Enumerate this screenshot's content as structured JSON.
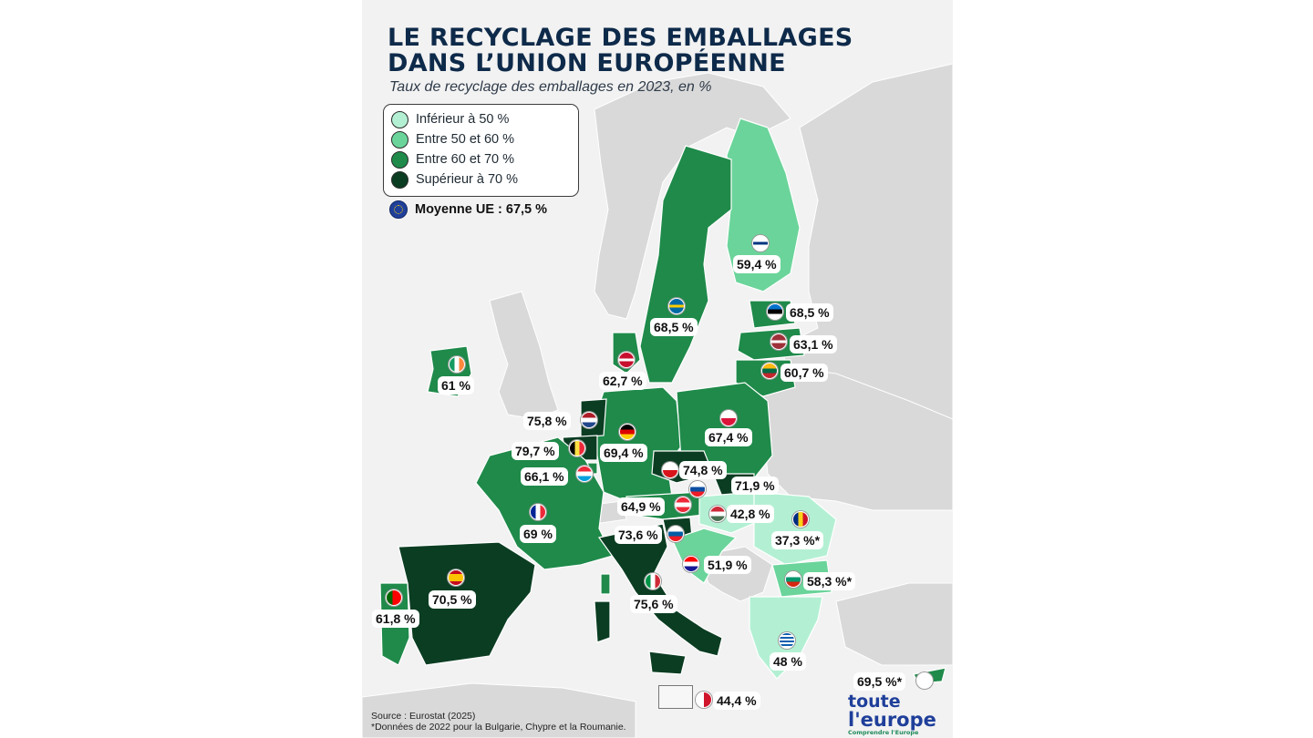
{
  "title_line1": "LE RECYCLAGE DES EMBALLAGES",
  "title_line2": "DANS L’UNION EUROPÉENNE",
  "subtitle": "Taux de recyclage des emballages en 2023, en %",
  "legend": [
    {
      "label": "Inférieur à 50 %",
      "color": "#b3f0d3"
    },
    {
      "label": "Entre 50 et 60 %",
      "color": "#6bd49a"
    },
    {
      "label": "Entre 60 et 70 %",
      "color": "#1f8a4a"
    },
    {
      "label": "Supérieur à 70 %",
      "color": "#0b3d22"
    }
  ],
  "eu_average": "Moyenne UE : 67,5 %",
  "countries": {
    "finlande": {
      "label": "59,4 %",
      "flag": "fi-flag-icon"
    },
    "suede": {
      "label": "68,5 %",
      "flag": "se-flag-icon"
    },
    "estonie": {
      "label": "68,5 %",
      "flag": "ee-flag-icon"
    },
    "lettonie": {
      "label": "63,1 %",
      "flag": "lv-flag-icon"
    },
    "lituanie": {
      "label": "60,7 %",
      "flag": "lt-flag-icon"
    },
    "danemark": {
      "label": "62,7 %",
      "flag": "dk-flag-icon"
    },
    "irlande": {
      "label": "61 %",
      "flag": "ie-flag-icon"
    },
    "pays_bas": {
      "label": "75,8 %",
      "flag": "nl-flag-icon"
    },
    "allemagne": {
      "label": "69,4 %",
      "flag": "de-flag-icon"
    },
    "pologne": {
      "label": "67,4 %",
      "flag": "pl-flag-icon"
    },
    "belgique": {
      "label": "79,7 %",
      "flag": "be-flag-icon"
    },
    "luxembourg": {
      "label": "66,1 %",
      "flag": "lu-flag-icon"
    },
    "tchequie": {
      "label": "74,8 %",
      "flag": "cz-flag-icon"
    },
    "slovaquie": {
      "label": "71,9 %",
      "flag": "sk-flag-icon"
    },
    "autriche": {
      "label": "64,9 %",
      "flag": "at-flag-icon"
    },
    "hongrie": {
      "label": "42,8 %",
      "flag": "hu-flag-icon"
    },
    "roumanie": {
      "label": "37,3 %*",
      "flag": "ro-flag-icon"
    },
    "france": {
      "label": "69 %",
      "flag": "fr-flag-icon"
    },
    "slovenie": {
      "label": "73,6 %",
      "flag": "si-flag-icon"
    },
    "croatie": {
      "label": "51,9 %",
      "flag": "hr-flag-icon"
    },
    "bulgarie": {
      "label": "58,3 %*",
      "flag": "bg-flag-icon"
    },
    "espagne": {
      "label": "70,5 %",
      "flag": "es-flag-icon"
    },
    "italie": {
      "label": "75,6 %",
      "flag": "it-flag-icon"
    },
    "portugal": {
      "label": "61,8 %",
      "flag": "pt-flag-icon"
    },
    "grece": {
      "label": "48 %",
      "flag": "gr-flag-icon"
    },
    "chypre": {
      "label": "69,5 %*",
      "flag": "cy-flag-icon"
    },
    "malte": {
      "label": "44,4 %",
      "flag": "mt-flag-icon"
    }
  },
  "source_line1": "Source : Eurostat (2025)",
  "source_line2": "*Données de 2022 pour la Bulgarie, Chypre et la Roumanie.",
  "logo_line1": "toute",
  "logo_line2": "l'europe",
  "logo_tagline": "Comprendre l'Europe"
}
